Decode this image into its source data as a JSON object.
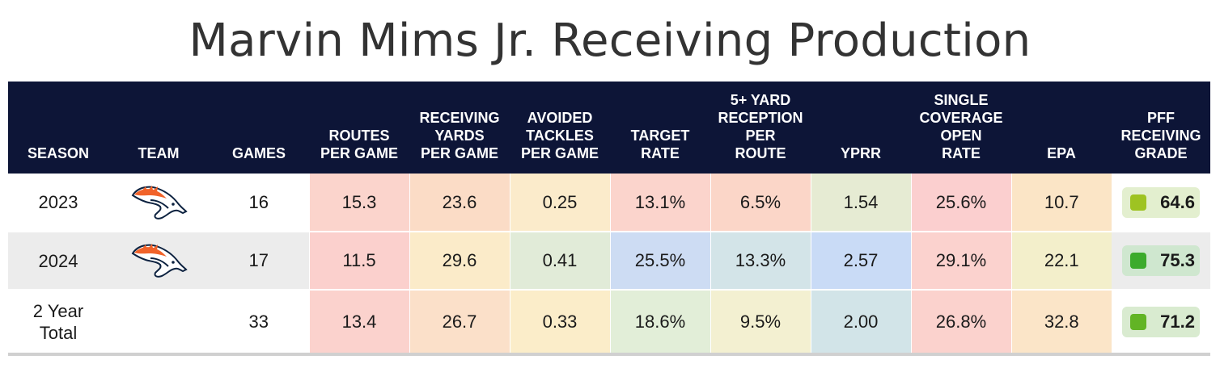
{
  "title": "Marvin Mims Jr. Receiving Production",
  "columns": [
    "SEASON",
    "TEAM",
    "GAMES",
    "ROUTES\nPER GAME",
    "RECEIVING\nYARDS\nPER GAME",
    "AVOIDED\nTACKLES\nPER GAME",
    "TARGET\nRATE",
    "5+ YARD\nRECEPTION\nPER\nROUTE",
    "YPRR",
    "SINGLE\nCOVERAGE\nOPEN\nRATE",
    "EPA",
    "PFF\nRECEIVING\nGRADE"
  ],
  "team_logo_icon": "broncos-logo-icon",
  "rows": [
    {
      "season": "2023",
      "games": "16",
      "show_logo": true,
      "metrics": [
        "15.3",
        "23.6",
        "0.25",
        "13.1%",
        "6.5%",
        "1.54",
        "25.6%",
        "10.7"
      ],
      "metric_colors": [
        "#fbd4cc",
        "#fbdcc6",
        "#fbebcb",
        "#fbd4cc",
        "#fbd6c8",
        "#e6ebd3",
        "#fbcfcf",
        "#fbe5c6"
      ],
      "grade": "64.6",
      "grade_box_color": "#e3efcf",
      "grade_dot_color": "#9ec322"
    },
    {
      "season": "2024",
      "games": "17",
      "show_logo": true,
      "metrics": [
        "11.5",
        "29.6",
        "0.41",
        "25.5%",
        "13.3%",
        "2.57",
        "29.1%",
        "22.1"
      ],
      "metric_colors": [
        "#fbd0cd",
        "#fbebc9",
        "#e1ebd8",
        "#cddcf3",
        "#d3e4e8",
        "#c9dbf6",
        "#fbd2ce",
        "#f3efcb"
      ],
      "grade": "75.3",
      "grade_box_color": "#cfe7cf",
      "grade_dot_color": "#3cab2c"
    },
    {
      "season": "2 Year\nTotal",
      "games": "33",
      "show_logo": false,
      "metrics": [
        "13.4",
        "26.7",
        "0.33",
        "18.6%",
        "9.5%",
        "2.00",
        "26.8%",
        "32.8"
      ],
      "metric_colors": [
        "#fbd2cd",
        "#fbe0c9",
        "#fbedc9",
        "#e2eed8",
        "#f3f0d1",
        "#d2e4e8",
        "#fbd2cd",
        "#fbe5c8"
      ],
      "grade": "71.2",
      "grade_box_color": "#d9ebd0",
      "grade_dot_color": "#62b425"
    }
  ]
}
